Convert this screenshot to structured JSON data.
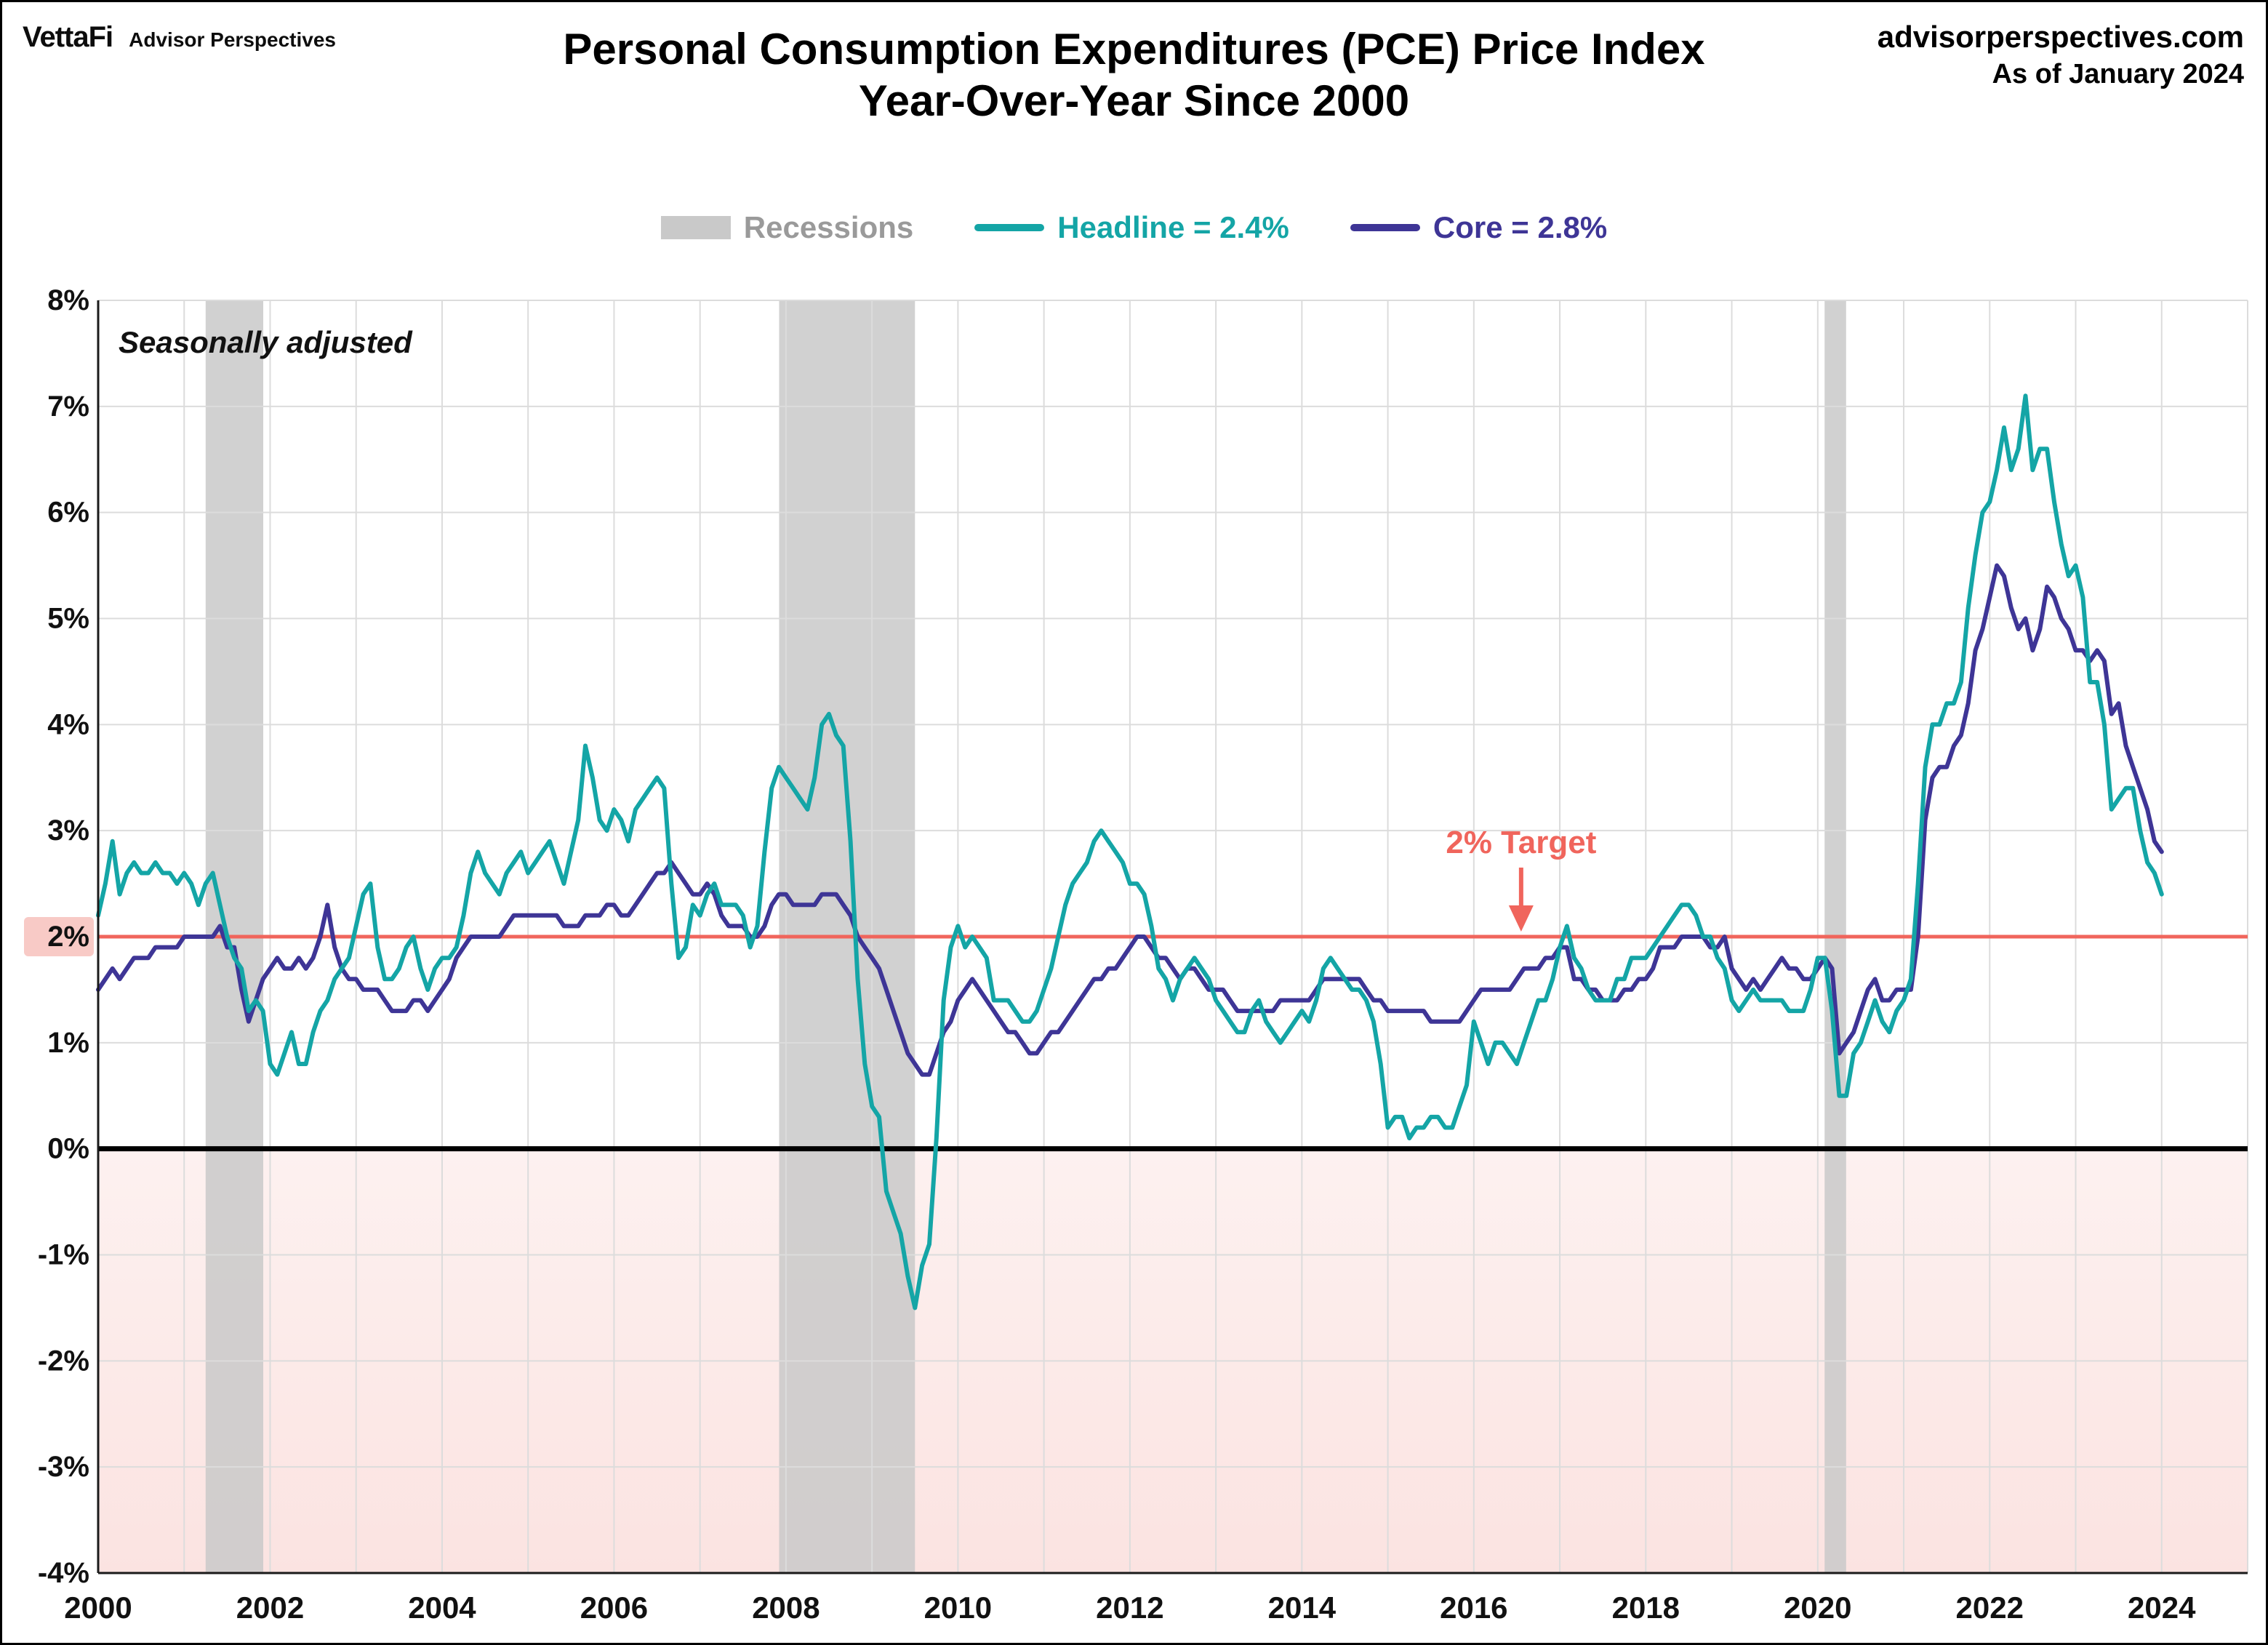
{
  "header": {
    "logo_primary": "VettaFi",
    "logo_secondary": "Advisor Perspectives",
    "title_line1": "Personal Consumption Expenditures (PCE) Price Index",
    "title_line2": "Year-Over-Year Since 2000",
    "site": "advisorperspectives.com",
    "as_of": "As of January 2024"
  },
  "legend": {
    "recessions_label": "Recessions",
    "headline_label": "Headline = 2.4%",
    "core_label": "Core = 2.8%"
  },
  "annotations": {
    "seasonally_adjusted": "Seasonally adjusted",
    "target_label": "2% Target"
  },
  "chart_data": {
    "type": "line",
    "title": "Personal Consumption Expenditures (PCE) Price Index Year-Over-Year Since 2000",
    "xlabel": "",
    "ylabel": "",
    "x_domain": [
      2000,
      2025
    ],
    "ylim": [
      -4,
      8
    ],
    "x_start": 2000.0,
    "x_step": "monthly",
    "x_ticks": [
      "2000",
      "2002",
      "2004",
      "2006",
      "2008",
      "2010",
      "2012",
      "2014",
      "2016",
      "2018",
      "2020",
      "2022",
      "2024"
    ],
    "y_ticks": [
      "8%",
      "7%",
      "6%",
      "5%",
      "4%",
      "3%",
      "2%",
      "1%",
      "0%",
      "-1%",
      "-2%",
      "-3%",
      "-4%"
    ],
    "grid": true,
    "legend_position": "top",
    "target_line": 2,
    "zero_line": 0,
    "recessions": [
      [
        2001.25,
        2001.92
      ],
      [
        2007.92,
        2009.5
      ],
      [
        2020.08,
        2020.33
      ]
    ],
    "colors": {
      "headline": "#14A5A6",
      "core": "#3E3596",
      "recession": "#C9C9C9",
      "recession_label": "#9A9A9A",
      "target": "#F0655C",
      "target_highlight": "#F6BDB8",
      "below_zero_top": "#FDF1F0",
      "below_zero_bottom": "#FBE3E1",
      "grid": "#DCDCDC",
      "axis": "#1A1A1A"
    },
    "series": [
      {
        "name": "Headline",
        "current": "2.4%",
        "values": [
          2.2,
          2.5,
          2.9,
          2.4,
          2.6,
          2.7,
          2.6,
          2.6,
          2.7,
          2.6,
          2.6,
          2.5,
          2.6,
          2.5,
          2.3,
          2.5,
          2.6,
          2.3,
          2.0,
          1.8,
          1.7,
          1.3,
          1.4,
          1.3,
          0.8,
          0.7,
          0.9,
          1.1,
          0.8,
          0.8,
          1.1,
          1.3,
          1.4,
          1.6,
          1.7,
          1.8,
          2.1,
          2.4,
          2.5,
          1.9,
          1.6,
          1.6,
          1.7,
          1.9,
          2.0,
          1.7,
          1.5,
          1.7,
          1.8,
          1.8,
          1.9,
          2.2,
          2.6,
          2.8,
          2.6,
          2.5,
          2.4,
          2.6,
          2.7,
          2.8,
          2.6,
          2.7,
          2.8,
          2.9,
          2.7,
          2.5,
          2.8,
          3.1,
          3.8,
          3.5,
          3.1,
          3.0,
          3.2,
          3.1,
          2.9,
          3.2,
          3.3,
          3.4,
          3.5,
          3.4,
          2.5,
          1.8,
          1.9,
          2.3,
          2.2,
          2.4,
          2.5,
          2.3,
          2.3,
          2.3,
          2.2,
          1.9,
          2.1,
          2.8,
          3.4,
          3.6,
          3.5,
          3.4,
          3.3,
          3.2,
          3.5,
          4.0,
          4.1,
          3.9,
          3.8,
          2.9,
          1.6,
          0.8,
          0.4,
          0.3,
          -0.4,
          -0.6,
          -0.8,
          -1.2,
          -1.5,
          -1.1,
          -0.9,
          0.1,
          1.4,
          1.9,
          2.1,
          1.9,
          2.0,
          1.9,
          1.8,
          1.4,
          1.4,
          1.4,
          1.3,
          1.2,
          1.2,
          1.3,
          1.5,
          1.7,
          2.0,
          2.3,
          2.5,
          2.6,
          2.7,
          2.9,
          3.0,
          2.9,
          2.8,
          2.7,
          2.5,
          2.5,
          2.4,
          2.1,
          1.7,
          1.6,
          1.4,
          1.6,
          1.7,
          1.8,
          1.7,
          1.6,
          1.4,
          1.3,
          1.2,
          1.1,
          1.1,
          1.3,
          1.4,
          1.2,
          1.1,
          1.0,
          1.1,
          1.2,
          1.3,
          1.2,
          1.4,
          1.7,
          1.8,
          1.7,
          1.6,
          1.5,
          1.5,
          1.4,
          1.2,
          0.8,
          0.2,
          0.3,
          0.3,
          0.1,
          0.2,
          0.2,
          0.3,
          0.3,
          0.2,
          0.2,
          0.4,
          0.6,
          1.2,
          1.0,
          0.8,
          1.0,
          1.0,
          0.9,
          0.8,
          1.0,
          1.2,
          1.4,
          1.4,
          1.6,
          1.9,
          2.1,
          1.8,
          1.7,
          1.5,
          1.4,
          1.4,
          1.4,
          1.6,
          1.6,
          1.8,
          1.8,
          1.8,
          1.9,
          2.0,
          2.1,
          2.2,
          2.3,
          2.3,
          2.2,
          2.0,
          2.0,
          1.8,
          1.7,
          1.4,
          1.3,
          1.4,
          1.5,
          1.4,
          1.4,
          1.4,
          1.4,
          1.3,
          1.3,
          1.3,
          1.5,
          1.8,
          1.8,
          1.3,
          0.5,
          0.5,
          0.9,
          1.0,
          1.2,
          1.4,
          1.2,
          1.1,
          1.3,
          1.4,
          1.6,
          2.5,
          3.6,
          4.0,
          4.0,
          4.2,
          4.2,
          4.4,
          5.1,
          5.6,
          6.0,
          6.1,
          6.4,
          6.8,
          6.4,
          6.6,
          7.1,
          6.4,
          6.6,
          6.6,
          6.1,
          5.7,
          5.4,
          5.5,
          5.2,
          4.4,
          4.4,
          4.0,
          3.2,
          3.3,
          3.4,
          3.4,
          3.0,
          2.7,
          2.6,
          2.4
        ]
      },
      {
        "name": "Core",
        "current": "2.8%",
        "values": [
          1.5,
          1.6,
          1.7,
          1.6,
          1.7,
          1.8,
          1.8,
          1.8,
          1.9,
          1.9,
          1.9,
          1.9,
          2.0,
          2.0,
          2.0,
          2.0,
          2.0,
          2.1,
          1.9,
          1.9,
          1.5,
          1.2,
          1.4,
          1.6,
          1.7,
          1.8,
          1.7,
          1.7,
          1.8,
          1.7,
          1.8,
          2.0,
          2.3,
          1.9,
          1.7,
          1.6,
          1.6,
          1.5,
          1.5,
          1.5,
          1.4,
          1.3,
          1.3,
          1.3,
          1.4,
          1.4,
          1.3,
          1.4,
          1.5,
          1.6,
          1.8,
          1.9,
          2.0,
          2.0,
          2.0,
          2.0,
          2.0,
          2.1,
          2.2,
          2.2,
          2.2,
          2.2,
          2.2,
          2.2,
          2.2,
          2.1,
          2.1,
          2.1,
          2.2,
          2.2,
          2.2,
          2.3,
          2.3,
          2.2,
          2.2,
          2.3,
          2.4,
          2.5,
          2.6,
          2.6,
          2.7,
          2.6,
          2.5,
          2.4,
          2.4,
          2.5,
          2.4,
          2.2,
          2.1,
          2.1,
          2.1,
          2.0,
          2.0,
          2.1,
          2.3,
          2.4,
          2.4,
          2.3,
          2.3,
          2.3,
          2.3,
          2.4,
          2.4,
          2.4,
          2.3,
          2.2,
          2.0,
          1.9,
          1.8,
          1.7,
          1.5,
          1.3,
          1.1,
          0.9,
          0.8,
          0.7,
          0.7,
          0.9,
          1.1,
          1.2,
          1.4,
          1.5,
          1.6,
          1.5,
          1.4,
          1.3,
          1.2,
          1.1,
          1.1,
          1.0,
          0.9,
          0.9,
          1.0,
          1.1,
          1.1,
          1.2,
          1.3,
          1.4,
          1.5,
          1.6,
          1.6,
          1.7,
          1.7,
          1.8,
          1.9,
          2.0,
          2.0,
          1.9,
          1.8,
          1.8,
          1.7,
          1.6,
          1.7,
          1.7,
          1.6,
          1.5,
          1.5,
          1.5,
          1.4,
          1.3,
          1.3,
          1.3,
          1.3,
          1.3,
          1.3,
          1.4,
          1.4,
          1.4,
          1.4,
          1.4,
          1.5,
          1.6,
          1.6,
          1.6,
          1.6,
          1.6,
          1.6,
          1.5,
          1.4,
          1.4,
          1.3,
          1.3,
          1.3,
          1.3,
          1.3,
          1.3,
          1.2,
          1.2,
          1.2,
          1.2,
          1.2,
          1.3,
          1.4,
          1.5,
          1.5,
          1.5,
          1.5,
          1.5,
          1.6,
          1.7,
          1.7,
          1.7,
          1.8,
          1.8,
          1.9,
          1.9,
          1.6,
          1.6,
          1.5,
          1.5,
          1.4,
          1.4,
          1.4,
          1.5,
          1.5,
          1.6,
          1.6,
          1.7,
          1.9,
          1.9,
          1.9,
          2.0,
          2.0,
          2.0,
          2.0,
          1.9,
          1.9,
          2.0,
          1.7,
          1.6,
          1.5,
          1.6,
          1.5,
          1.6,
          1.7,
          1.8,
          1.7,
          1.7,
          1.6,
          1.6,
          1.7,
          1.8,
          1.7,
          0.9,
          1.0,
          1.1,
          1.3,
          1.5,
          1.6,
          1.4,
          1.4,
          1.5,
          1.5,
          1.5,
          2.0,
          3.1,
          3.5,
          3.6,
          3.6,
          3.8,
          3.9,
          4.2,
          4.7,
          4.9,
          5.2,
          5.5,
          5.4,
          5.1,
          4.9,
          5.0,
          4.7,
          4.9,
          5.3,
          5.2,
          5.0,
          4.9,
          4.7,
          4.7,
          4.6,
          4.7,
          4.6,
          4.1,
          4.2,
          3.8,
          3.6,
          3.4,
          3.2,
          2.9,
          2.8
        ]
      }
    ]
  }
}
